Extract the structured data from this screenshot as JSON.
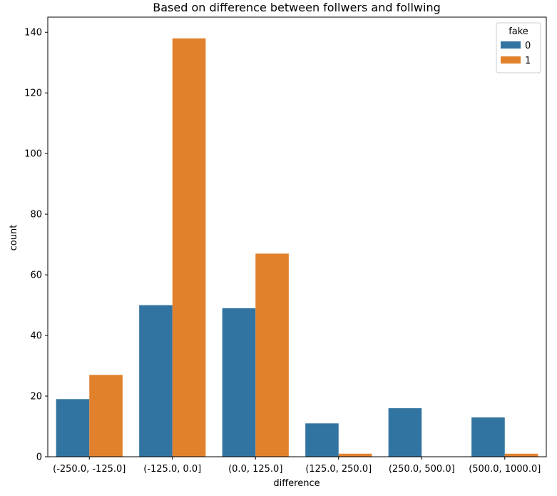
{
  "chart_data": {
    "type": "bar",
    "title": "Based on difference between follwers and follwing",
    "xlabel": "difference",
    "ylabel": "count",
    "ylim": [
      0,
      145
    ],
    "yticks": [
      0,
      20,
      40,
      60,
      80,
      100,
      120,
      140
    ],
    "categories": [
      "(-250.0, -125.0]",
      "(-125.0, 0.0]",
      "(0.0, 125.0]",
      "(125.0, 250.0]",
      "(250.0, 500.0]",
      "(500.0, 1000.0]"
    ],
    "series": [
      {
        "name": "0",
        "color": "#3274a1",
        "values": [
          19,
          50,
          49,
          11,
          16,
          13
        ]
      },
      {
        "name": "1",
        "color": "#e1812c",
        "values": [
          27,
          138,
          67,
          1,
          0,
          1
        ]
      }
    ],
    "legend": {
      "title": "fake",
      "position": "top-right"
    },
    "grid": false
  }
}
